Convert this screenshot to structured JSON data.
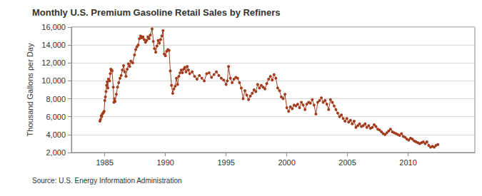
{
  "chart_data": {
    "type": "line",
    "title": "Monthly U.S. Premium Gasoline Retail Sales by Refiners",
    "y_label": "Thousand Gallons per Day",
    "source": "Source: U.S. Energy Information Administration",
    "color": "#a33b1d",
    "marker": "circle",
    "grid": true,
    "xlim": [
      1982.25,
      2015.5
    ],
    "xticks": [
      1985,
      1990,
      1995,
      2000,
      2005,
      2010
    ],
    "ylim": [
      2000,
      16000
    ],
    "yticks": [
      {
        "value": 2000,
        "label": "2,000"
      },
      {
        "value": 4000,
        "label": "4,000"
      },
      {
        "value": 6000,
        "label": "6,000"
      },
      {
        "value": 8000,
        "label": "8,000"
      },
      {
        "value": 10000,
        "label": "10,000"
      },
      {
        "value": 12000,
        "label": "12,000"
      },
      {
        "value": 14000,
        "label": "14,000"
      },
      {
        "value": 16000,
        "label": "16,000"
      }
    ],
    "x": [
      1984.6,
      1984.65,
      1984.7,
      1984.75,
      1984.8,
      1984.85,
      1984.9,
      1984.95,
      1985.0,
      1985.05,
      1985.1,
      1985.15,
      1985.2,
      1985.25,
      1985.3,
      1985.4,
      1985.45,
      1985.5,
      1985.55,
      1985.6,
      1985.7,
      1985.75,
      1985.8,
      1985.85,
      1985.95,
      1986.05,
      1986.15,
      1986.25,
      1986.35,
      1986.45,
      1986.55,
      1986.65,
      1986.75,
      1986.85,
      1986.95,
      1987.05,
      1987.15,
      1987.3,
      1987.45,
      1987.55,
      1987.65,
      1987.75,
      1987.85,
      1987.95,
      1988.05,
      1988.15,
      1988.25,
      1988.35,
      1988.45,
      1988.55,
      1988.65,
      1988.75,
      1988.9,
      1989.0,
      1989.1,
      1989.2,
      1989.3,
      1989.4,
      1989.5,
      1989.6,
      1989.7,
      1989.8,
      1989.9,
      1990.0,
      1990.1,
      1990.2,
      1990.3,
      1990.4,
      1990.5,
      1990.6,
      1990.7,
      1990.8,
      1990.9,
      1991.0,
      1991.1,
      1991.2,
      1991.3,
      1991.4,
      1991.5,
      1991.6,
      1991.7,
      1991.8,
      1991.9,
      1992.0,
      1992.2,
      1992.4,
      1992.6,
      1992.8,
      1993.0,
      1993.2,
      1993.4,
      1993.6,
      1993.8,
      1994.0,
      1994.2,
      1994.4,
      1994.6,
      1994.8,
      1995.0,
      1995.1,
      1995.2,
      1995.35,
      1995.5,
      1995.65,
      1995.8,
      1995.95,
      1996.1,
      1996.25,
      1996.4,
      1996.55,
      1996.7,
      1996.85,
      1997.0,
      1997.15,
      1997.3,
      1997.45,
      1997.6,
      1997.75,
      1997.9,
      1998.05,
      1998.2,
      1998.35,
      1998.5,
      1998.65,
      1998.8,
      1998.95,
      1999.1,
      1999.25,
      1999.4,
      1999.55,
      1999.7,
      1999.85,
      2000.0,
      2000.15,
      2000.3,
      2000.45,
      2000.6,
      2000.75,
      2000.9,
      2001.05,
      2001.2,
      2001.35,
      2001.5,
      2001.65,
      2001.8,
      2001.95,
      2002.1,
      2002.25,
      2002.4,
      2002.55,
      2002.7,
      2002.85,
      2003.0,
      2003.15,
      2003.3,
      2003.45,
      2003.6,
      2003.75,
      2003.9,
      2004.05,
      2004.2,
      2004.35,
      2004.5,
      2004.65,
      2004.8,
      2004.95,
      2005.1,
      2005.25,
      2005.4,
      2005.55,
      2005.7,
      2005.85,
      2006.0,
      2006.15,
      2006.3,
      2006.45,
      2006.6,
      2006.75,
      2006.9,
      2007.05,
      2007.2,
      2007.35,
      2007.5,
      2007.65,
      2007.8,
      2007.95,
      2008.1,
      2008.25,
      2008.4,
      2008.55,
      2008.7,
      2008.85,
      2009.0,
      2009.15,
      2009.3,
      2009.45,
      2009.6,
      2009.75,
      2009.9,
      2010.05,
      2010.2,
      2010.35,
      2010.5,
      2010.65,
      2010.8,
      2010.95,
      2011.1,
      2011.25,
      2011.4,
      2011.55,
      2011.7,
      2011.85,
      2012.0,
      2012.15,
      2012.3,
      2012.45
    ],
    "values": [
      5500,
      5700,
      6100,
      6000,
      6300,
      6400,
      6500,
      6600,
      7800,
      8200,
      8800,
      9500,
      9900,
      9200,
      10200,
      10000,
      10800,
      11300,
      11200,
      11100,
      9300,
      7600,
      8000,
      7700,
      8500,
      9300,
      9800,
      10300,
      10600,
      11200,
      11700,
      11000,
      10500,
      11300,
      11900,
      11600,
      12200,
      12000,
      12900,
      13500,
      13800,
      14000,
      14700,
      15000,
      14800,
      14900,
      14600,
      14300,
      14500,
      14900,
      14700,
      15100,
      15800,
      14400,
      13600,
      13200,
      13900,
      14500,
      14200,
      14600,
      15000,
      15600,
      13000,
      12800,
      13300,
      13500,
      13400,
      11100,
      9500,
      8600,
      9100,
      9400,
      10300,
      9600,
      10500,
      10900,
      11200,
      10900,
      11300,
      11500,
      11000,
      11600,
      11200,
      10800,
      11000,
      10500,
      10200,
      10600,
      10300,
      10000,
      10800,
      10900,
      10400,
      10700,
      11000,
      10600,
      10300,
      10100,
      9600,
      10000,
      11600,
      10300,
      9800,
      10200,
      10400,
      10300,
      9800,
      9200,
      8000,
      8900,
      8400,
      7900,
      8300,
      8600,
      9000,
      8800,
      9600,
      9200,
      9500,
      9300,
      9100,
      9700,
      10200,
      10500,
      10100,
      10700,
      10300,
      9200,
      8900,
      8200,
      8000,
      8500,
      7000,
      6600,
      7100,
      6900,
      7300,
      7200,
      7400,
      7000,
      7600,
      7300,
      6800,
      7400,
      7600,
      7500,
      7900,
      7300,
      6300,
      7600,
      7800,
      8100,
      7600,
      7800,
      7400,
      6800,
      7900,
      7600,
      7200,
      6800,
      6400,
      6000,
      6200,
      5800,
      5500,
      5800,
      5400,
      5600,
      5200,
      5500,
      4800,
      5000,
      5200,
      4900,
      5000,
      5200,
      4800,
      5000,
      4700,
      4800,
      5100,
      4900,
      4600,
      4500,
      4300,
      4100,
      4000,
      4200,
      4400,
      4600,
      4300,
      4200,
      4100,
      4000,
      3900,
      4100,
      3800,
      3700,
      3500,
      3400,
      3600,
      3500,
      3300,
      3200,
      3100,
      3000,
      3100,
      3200,
      3000,
      3200,
      2800,
      2600,
      2700,
      2600,
      2800,
      2900
    ]
  }
}
